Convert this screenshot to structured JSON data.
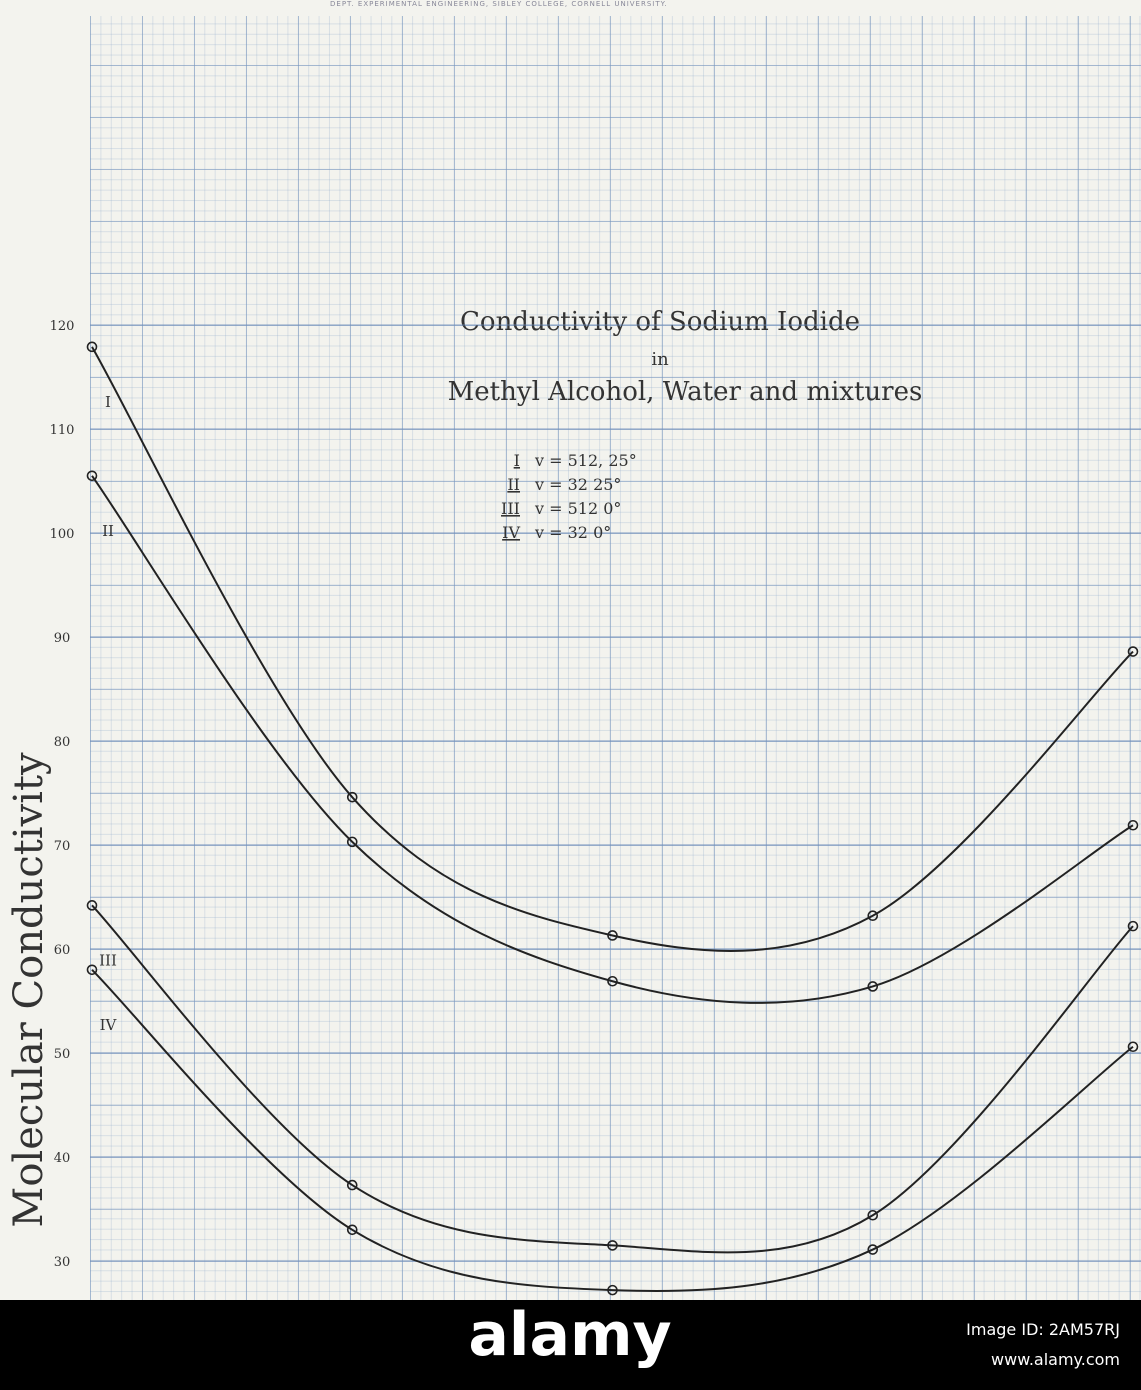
{
  "chart_data": {
    "type": "line",
    "header": "DEPT. EXPERIMENTAL ENGINEERING, SIBLEY COLLEGE, CORNELL UNIVERSITY.",
    "title": "Conductivity of Sodium Iodide",
    "subtitle": "in",
    "subtitle2": "Methyl Alcohol, Water and mixtures",
    "ylabel": "Molecular Conductivity",
    "categories": [
      null,
      null,
      null,
      null,
      null
    ],
    "series": [
      {
        "name": "I",
        "label": "v = 512, 25°",
        "color": "#222",
        "values": [
          117.9,
          74.6,
          61.3,
          63.2,
          88.6
        ]
      },
      {
        "name": "II",
        "label": "v = 32 25°",
        "color": "#222",
        "values": [
          105.5,
          70.3,
          56.9,
          56.4,
          71.9
        ]
      },
      {
        "name": "III",
        "label": "v = 512 0°",
        "color": "#222",
        "values": [
          64.2,
          37.3,
          31.5,
          34.4,
          62.2
        ]
      },
      {
        "name": "IV",
        "label": "v = 32 0°",
        "color": "#222",
        "values": [
          58.0,
          33.0,
          27.2,
          31.1,
          50.6
        ]
      }
    ],
    "ylim": [
      26.25,
      151.25
    ],
    "yticks": [
      30,
      40,
      50,
      60,
      70,
      80,
      90,
      100,
      110,
      120
    ],
    "grid": true
  },
  "watermark": {
    "logo": "alamy",
    "image_id": "Image ID: 2AM57RJ",
    "url": "www.alamy.com"
  }
}
